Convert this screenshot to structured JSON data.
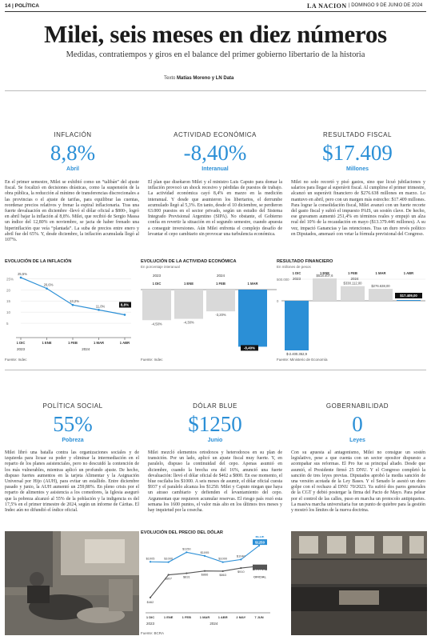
{
  "header": {
    "page": "14 | POLÍTICA",
    "logo": "LA NACION",
    "date": "| DOMINGO 9 DE JUNIO DE 2024"
  },
  "title": "Milei, seis meses en diez números",
  "subtitle": "Medidas, contratiempos y giros en el balance del primer gobierno libertario de la historia",
  "byline": {
    "prefix": "Texto",
    "authors": "Matías Moreno y LN Data"
  },
  "accent_color": "#2b8fd6",
  "sections": [
    {
      "label": "INFLACIÓN",
      "value": "8,8%",
      "unit": "Abril",
      "text": "En el primer semestre, Milei se exhibió como un “talibán” del ajuste fiscal. Se focalizó en decisiones drásticas, como la suspensión de la obra pública, la reducción al mínimo de transferencias discrecionales a las provincias o el ajuste de tarifas, para equilibrar las cuentas, reordenar precios relativos y frenar la espiral inflacionaria. Tras una fuerte devaluación en diciembre -llevó el dólar oficial a $800-, logró en abril bajar la inflación al 8,8%. Milei, que recibió de Sergio Massa un índice del 12,80% en noviembre, se jacta de haber frenado una hiperinflación que veía “plantada”. La suba de precios entre enero y abril fue del 65%. Y, desde diciembre, la inflación acumulada llegó al 107%."
    },
    {
      "label": "ACTIVIDAD ECONÓMICA",
      "value": "-8,40%",
      "unit": "Interanual",
      "text": "El plan que diseñaron Milei y el ministro Luis Caputo para domar la inflación provocó un shock recesivo y pérdidas de puestos de trabajo. La actividad económica cayó 8,4% en marzo en la medición interanual. Y desde que asumieron los libertarios, el derrumbe acumulado llegó al 5,3%. En tanto, desde el 10 diciembre, se perdieron 63.000 puestos en el sector privado, según un estudio del Sistema Integrado Previsional Argentino (SIPA). No obstante, el Gobierno confía en revertir la situación en el segundo semestre, cuando apuesta a conseguir inversiones. Aún Milei enfrenta el complejo desafío de levantar el cepo cambiario sin provocar una turbulencia económica."
    },
    {
      "label": "RESULTADO FISCAL",
      "value": "$17.409",
      "unit": "Millones",
      "text": "Milei no solo recortó y pisó gastos, sino que licuó jubilaciones y salarios para llegar al superávit fiscal. Al cumplirse el primer trimestre, alcanzó un superávit financiero de $276.638 millones en marzo. Lo mantuvo en abril, pero con un margen más estrecho: $17.409 millones. Para lograr la consolidación fiscal, Milei avanzó con un fuerte recorte del gasto fiscal y subió el impuesto PAIS, un sostén clave. De hecho, ese gravamen aumentó 251,4% en términos reales y empujó un alza real del 10% de la recaudación en mayo ($13.379.446 millones). A su vez, impactó Ganancias y las retenciones. Tras un duro revés político en Diputados, amenazó con vetar la fórmula previsional del Congreso."
    },
    {
      "label": "POLÍTICA SOCIAL",
      "value": "55%",
      "unit": "Pobreza",
      "text": "Milei libró una batalla contra las organizaciones sociales y de izquierda para licuar su poder y eliminar la intermediación en el reparto de los planes asistenciales, pero no descuidó la contención de los más vulnerables, mientras aplicó un profundo ajuste. De hecho, dispuso fuertes aumentos en la tarjeta Alimentar y la Asignación Universal por Hijo (AUH), para evitar un estallido. Entre diciembre pasado y junio, la AUH aumentó un 259,88%. En pleno crisis por el reparto de alimentos y asistencia a los comedores, la Iglesia aseguró que la pobreza alcanzó al 55% de la población y la indigencia es del 17,5% en el primer trimestre de 2024, según un informe de Cáritas. El Indec aún no difundió el índice oficial."
    },
    {
      "label": "DÓLAR BLUE",
      "value": "$1250",
      "unit": "Junio",
      "text": "Milei mezcló elementos ortodoxos y heterodoxos en su plan de transición. Por un lado, aplicó un ajuste fiscal muy fuerte. Y, en paralelo, dispuso la continuidad del cepo. Apenas asumió en diciembre, cuando la brecha era del 16%, anunció una fuerte devaluación: llevó el dólar oficial de $462 a $800. En ese momento, el blue oscilaba los $1000. A seis meses de asumir, el dólar oficial cuesta $937 y el paralelo alcanza los $1250. Milei y Caputo niegan que haya un atraso cambiario y defienden el levantamiento del cepo. Argumentan que requieren acumular reservas. El riesgo país rozó esta semana los 1600 puntos, el valor más alto en los últimos tres meses y hay inquietud por la cosecha."
    },
    {
      "label": "GOBERNABILIDAD",
      "value": "0",
      "unit": "Leyes",
      "text": "Con su apuesta al antagonismo, Milei no consigue un sostén legislativo, pese a que cuenta con un sector opositor dispuesto a acompañar sus reformas. El Pro fue su principal aliado. Desde que asumió, el Presidente firmó 25 DNU. Y el Congreso completó la sanción de tres leyes previas. Diputados aprobó la media sanción de una versión acotada de la Ley Bases. Y el Senado le asestó un duro golpe con el rechazo al DNU 70/2023. Ya sufrió dos paros generales de la CGT y debió postergar la firma del Pacto de Mayo. Para pelear por el control de las calles, puso en marcha un protocolo antipiquetes. La masiva marcha universitaria fue un punto de quiebre para la gestión y mostró los límites de la nueva doctrina."
    }
  ],
  "charts": {
    "inflation": {
      "title": "EVOLUCIÓN DE LA INFLACIÓN",
      "source": "Fuente: Indec"
    },
    "activity": {
      "title": "EVOLUCIÓN DE LA ACTIVIDAD ECONÓMICA",
      "subtitle": "En porcentaje interanual",
      "source": "Fuente: Indec"
    },
    "fiscal": {
      "title": "RESULTADO FINANCIERO",
      "subtitle": "En millones de pesos",
      "source": "Fuente: Ministerio de Economía"
    },
    "dollar": {
      "title": "EVOLUCIÓN DEL PRECIO DEL DÓLAR",
      "source": "Fuente: BCRA"
    }
  },
  "chart_data": [
    {
      "type": "line",
      "title": "EVOLUCIÓN DE LA INFLACIÓN",
      "categories": [
        "1 DIC",
        "1 ENE",
        "1 FEB",
        "1 MAR",
        "1 ABR"
      ],
      "values": [
        25.5,
        20.6,
        13.2,
        11.0,
        8.8
      ],
      "labels": [
        "25,5%",
        "20,6%",
        "13,2%",
        "11,0%",
        "8,8%"
      ],
      "yticks": [
        "25%",
        "20",
        "15",
        "10",
        "5"
      ],
      "ylim": [
        0,
        28
      ],
      "periods": [
        "2023",
        "2024"
      ]
    },
    {
      "type": "bar",
      "title": "EVOLUCIÓN DE LA ACTIVIDAD ECONÓMICA",
      "subtitle": "En porcentaje interanual",
      "categories": [
        "1 DIC",
        "1 ENE",
        "1 FEB",
        "1 MAR"
      ],
      "values": [
        -4.5,
        -4.3,
        -3.2,
        -8.4
      ],
      "labels": [
        "-4,50%",
        "-4,30%",
        "-3,20%",
        "-8,40%"
      ],
      "periods": [
        "2023",
        "2024"
      ]
    },
    {
      "type": "bar",
      "title": "RESULTADO FINANCIERO",
      "subtitle": "En millones de pesos",
      "categories": [
        "1 DIC",
        "1 ENE",
        "1 FEB",
        "1 MAR",
        "1 ABR"
      ],
      "values": [
        -2400352.9,
        518407.6,
        338112.0,
        276638.0,
        17409.0
      ],
      "labels": [
        "$-2.400.352,9",
        "$518.407,6",
        "$338.112,00",
        "$276.638,00",
        "$17.409,00"
      ],
      "yticks": [
        "500.000",
        "0"
      ],
      "periods": [
        "2023",
        "2024"
      ]
    },
    {
      "type": "line",
      "title": "EVOLUCIÓN DEL PRECIO DEL DÓLAR",
      "categories": [
        "1 DIC",
        "1 ENE",
        "1 FEB",
        "1 MAR",
        "1 ABR",
        "2 MAY",
        "7 JUN"
      ],
      "periods": [
        "2023",
        "2024"
      ],
      "series": [
        {
          "name": "BLUE",
          "values": [
            1005,
            1000,
            1150,
            1095,
            1000,
            1040,
            1250
          ],
          "labels": [
            "$1005",
            "$1000",
            "$1150",
            "$1095",
            "$1000",
            "$1040",
            "$1250"
          ]
        },
        {
          "name": "OFICIAL",
          "values": [
            462,
            807,
            831,
            866,
            863,
            910,
            938.5
          ],
          "labels": [
            "$462",
            "$807",
            "$831",
            "$866",
            "$863",
            "$910",
            "$938,5"
          ]
        }
      ],
      "ylim": [
        400,
        1300
      ]
    }
  ]
}
